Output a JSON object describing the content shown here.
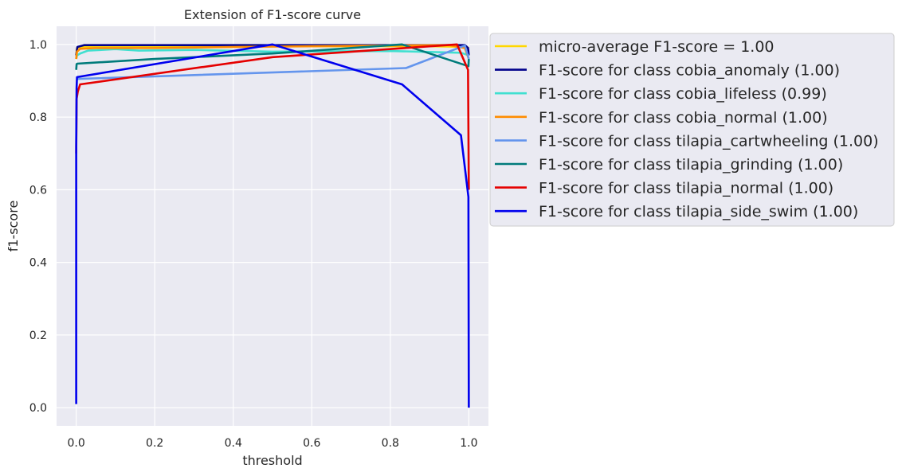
{
  "chart_data": {
    "type": "line",
    "title": "Extension of F1-score curve",
    "xlabel": "threshold",
    "ylabel": "f1-score",
    "xlim": [
      -0.05,
      1.05
    ],
    "ylim": [
      -0.05,
      1.05
    ],
    "xticks": [
      "0.0",
      "0.2",
      "0.4",
      "0.6",
      "0.8",
      "1.0"
    ],
    "yticks": [
      "0.0",
      "0.2",
      "0.4",
      "0.6",
      "0.8",
      "1.0"
    ],
    "grid": true,
    "legend_position": "upper-left outside plot",
    "series": [
      {
        "name": "micro-average F1-score = 1.00",
        "color": "#FFD700",
        "x": [
          0.0,
          0.002,
          0.01,
          0.05,
          0.3,
          0.6,
          0.9,
          0.995,
          1.0
        ],
        "y": [
          0.97,
          0.99,
          0.993,
          0.995,
          0.995,
          0.995,
          0.995,
          0.993,
          0.99
        ]
      },
      {
        "name": "F1-score for class cobia_anomaly (1.00)",
        "color": "#00008B",
        "x": [
          0.0,
          0.003,
          0.02,
          0.2,
          0.5,
          0.8,
          0.99,
          0.998,
          1.0
        ],
        "y": [
          0.97,
          0.993,
          0.998,
          0.998,
          0.998,
          0.998,
          0.998,
          0.99,
          0.97
        ]
      },
      {
        "name": "F1-score for class cobia_lifeless (0.99)",
        "color": "#40E0D0",
        "x": [
          0.0,
          0.002,
          0.01,
          0.03,
          0.1,
          0.16,
          0.3,
          0.5,
          0.8,
          0.98,
          1.0
        ],
        "y": [
          0.96,
          0.97,
          0.975,
          0.983,
          0.987,
          0.983,
          0.985,
          0.98,
          0.982,
          0.977,
          0.97
        ]
      },
      {
        "name": "F1-score for class cobia_normal (1.00)",
        "color": "#FF8C00",
        "x": [
          0.0,
          0.002,
          0.01,
          0.05,
          0.2,
          0.4,
          0.6,
          0.8,
          0.95,
          0.99,
          1.0
        ],
        "y": [
          0.96,
          0.98,
          0.988,
          0.99,
          0.99,
          0.993,
          0.995,
          0.997,
          0.998,
          0.99,
          0.96
        ]
      },
      {
        "name": "F1-score for class tilapia_cartwheeling (1.00)",
        "color": "#6495ED",
        "x": [
          0.0,
          0.002,
          0.84,
          0.99,
          1.0
        ],
        "y": [
          0.905,
          0.905,
          0.935,
          0.997,
          0.96
        ]
      },
      {
        "name": "F1-score for class tilapia_grinding (1.00)",
        "color": "#007B7B",
        "x": [
          0.0,
          0.001,
          0.002,
          0.2,
          0.5,
          0.83,
          0.999,
          1.0
        ],
        "y": [
          0.93,
          0.945,
          0.947,
          0.96,
          0.975,
          1.0,
          0.94,
          0.96
        ]
      },
      {
        "name": "F1-score for class tilapia_normal (1.00)",
        "color": "#E50000",
        "x": [
          0.0,
          0.001,
          0.004,
          0.01,
          0.5,
          0.97,
          0.998,
          1.0
        ],
        "y": [
          0.7,
          0.85,
          0.87,
          0.89,
          0.965,
          1.0,
          0.93,
          0.6
        ]
      },
      {
        "name": "F1-score for class tilapia_side_swim (1.00)",
        "color": "#0000EE",
        "x": [
          0.0,
          0.0,
          0.001,
          0.002,
          0.5,
          0.83,
          0.98,
          0.999,
          1.0
        ],
        "y": [
          0.01,
          0.72,
          0.88,
          0.91,
          1.0,
          0.89,
          0.75,
          0.58,
          0.0
        ]
      }
    ]
  }
}
